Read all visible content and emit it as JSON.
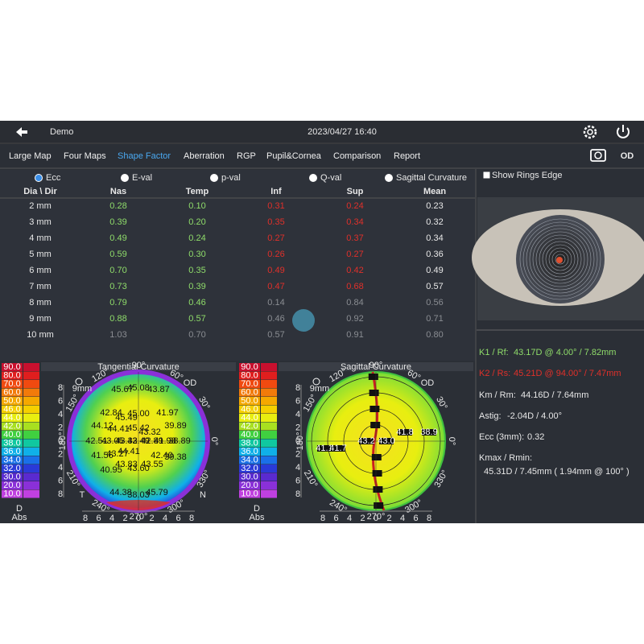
{
  "header": {
    "title": "Demo",
    "datetime": "2023/04/27 16:40"
  },
  "nav": {
    "tabs": [
      "Large Map",
      "Four Maps",
      "Shape Factor",
      "Aberration",
      "RGP",
      "Pupil&Cornea",
      "Comparison",
      "Report"
    ],
    "active": 2,
    "eye": "OD"
  },
  "shape_factor": {
    "options": [
      "Ecc",
      "E-val",
      "p-val",
      "Q-val",
      "Sagittal Curvature"
    ],
    "selected": 0,
    "table": {
      "header": [
        "Dia \\ Dir",
        "Nas",
        "Temp",
        "Inf",
        "Sup",
        "Mean"
      ],
      "rows": [
        {
          "cells": [
            "2 mm",
            "0.28",
            "0.10",
            "0.31",
            "0.24",
            "0.23"
          ],
          "colors": [
            "#e8e8e8",
            "#8fdc6a",
            "#8fdc6a",
            "#e0302a",
            "#e0302a",
            "#e8e8e8"
          ]
        },
        {
          "cells": [
            "3 mm",
            "0.39",
            "0.20",
            "0.35",
            "0.34",
            "0.32"
          ],
          "colors": [
            "#e8e8e8",
            "#8fdc6a",
            "#8fdc6a",
            "#e0302a",
            "#e0302a",
            "#e8e8e8"
          ]
        },
        {
          "cells": [
            "4 mm",
            "0.49",
            "0.24",
            "0.27",
            "0.37",
            "0.34"
          ],
          "colors": [
            "#e8e8e8",
            "#8fdc6a",
            "#8fdc6a",
            "#e0302a",
            "#e0302a",
            "#e8e8e8"
          ]
        },
        {
          "cells": [
            "5 mm",
            "0.59",
            "0.30",
            "0.26",
            "0.27",
            "0.36"
          ],
          "colors": [
            "#e8e8e8",
            "#8fdc6a",
            "#8fdc6a",
            "#e0302a",
            "#e0302a",
            "#e8e8e8"
          ]
        },
        {
          "cells": [
            "6 mm",
            "0.70",
            "0.35",
            "0.49",
            "0.42",
            "0.49"
          ],
          "colors": [
            "#e8e8e8",
            "#8fdc6a",
            "#8fdc6a",
            "#e0302a",
            "#e0302a",
            "#e8e8e8"
          ]
        },
        {
          "cells": [
            "7 mm",
            "0.73",
            "0.39",
            "0.47",
            "0.68",
            "0.57"
          ],
          "colors": [
            "#e8e8e8",
            "#8fdc6a",
            "#8fdc6a",
            "#e0302a",
            "#e0302a",
            "#e8e8e8"
          ]
        },
        {
          "cells": [
            "8 mm",
            "0.79",
            "0.46",
            "0.14",
            "0.84",
            "0.56"
          ],
          "colors": [
            "#e8e8e8",
            "#8fdc6a",
            "#8fdc6a",
            "#8a8d92",
            "#8a8d92",
            "#8a8d92"
          ]
        },
        {
          "cells": [
            "9 mm",
            "0.88",
            "0.57",
            "0.46",
            "0.92",
            "0.71"
          ],
          "colors": [
            "#e8e8e8",
            "#8fdc6a",
            "#8fdc6a",
            "#8a8d92",
            "#8a8d92",
            "#8a8d92"
          ]
        },
        {
          "cells": [
            "10 mm",
            "1.03",
            "0.70",
            "0.57",
            "0.91",
            "0.80"
          ],
          "colors": [
            "#e8e8e8",
            "#8a8d92",
            "#8a8d92",
            "#8a8d92",
            "#8a8d92",
            "#8a8d92"
          ]
        }
      ]
    }
  },
  "eye_image": {
    "checkbox": "Show Rings Edge",
    "checked": true
  },
  "keratometry": [
    {
      "label": "K1 / Rf:",
      "value": "43.17D @ 4.00° / 7.82mm",
      "color": "#8fdc6a"
    },
    {
      "label": "K2 / Rs:",
      "value": "45.21D @ 94.00° / 7.47mm",
      "color": "#e0302a"
    },
    {
      "label": "Km / Rm:",
      "value": "44.16D / 7.64mm",
      "color": "#e8e8e8"
    },
    {
      "label": "Astig:",
      "value": "-2.04D / 4.00°",
      "color": "#e8e8e8"
    },
    {
      "label": "Ecc (3mm):",
      "value": "0.32",
      "color": "#e8e8e8"
    },
    {
      "label": "Kmax / Rmin:",
      "value": "45.31D / 7.45mm ( 1.94mm @ 100° )",
      "color": "#e8e8e8"
    }
  ],
  "scale": {
    "labels": [
      "90.0",
      "80.0",
      "70.0",
      "60.0",
      "50.0",
      "46.0",
      "44.0",
      "42.0",
      "40.0",
      "38.0",
      "36.0",
      "34.0",
      "32.0",
      "30.0",
      "20.0",
      "10.0"
    ],
    "colors": [
      "#c8102e",
      "#e01e1e",
      "#f04a10",
      "#f27a0a",
      "#f5a800",
      "#f5d000",
      "#e8ee10",
      "#a8e020",
      "#40d040",
      "#10c8a0",
      "#10b0e8",
      "#1a70e8",
      "#2a3ad8",
      "#5a2ad0",
      "#8a30d8",
      "#c040e0"
    ],
    "unit": "D",
    "mode": "Abs"
  },
  "maps": [
    {
      "title": "Tangential Curvature",
      "eye": "OD",
      "zoom": "9mm",
      "temporal": "T",
      "nasal": "N",
      "angles": [
        "90°",
        "60°",
        "30°",
        "0°",
        "330°",
        "300°",
        "270°",
        "240°",
        "210°",
        "180°",
        "150°",
        "120°"
      ],
      "axis_ticks": [
        "8",
        "6",
        "4",
        "2",
        "0",
        "2",
        "4",
        "6",
        "8"
      ],
      "values": [
        "45.67",
        "45.08",
        "43.87",
        "42.84",
        "45.49",
        "45.00",
        "41.97",
        "44.12",
        "44.41",
        "45.42",
        "43.32",
        "39.89",
        "42.51",
        "43.05",
        "43.32",
        "43.49",
        "42.89",
        "41.98",
        "38.89",
        "41.56",
        "43.27",
        "44.41",
        "42.40",
        "39.38",
        "43.83",
        "43.60",
        "43.55",
        "40.95",
        "44.38",
        "38.03",
        "45.79"
      ]
    },
    {
      "title": "Sagittal Curvature",
      "eye": "OD",
      "zoom": "9mm",
      "angles": [
        "90°",
        "60°",
        "30°",
        "0°",
        "330°",
        "300°",
        "270°",
        "240°",
        "210°",
        "180°",
        "150°",
        "120°"
      ],
      "axis_ticks": [
        "8",
        "6",
        "4",
        "2",
        "0",
        "2",
        "4",
        "6",
        "8"
      ],
      "values": [
        "41.1",
        "41.7",
        "43.2",
        "43.0",
        "41.8",
        "38.9"
      ]
    }
  ]
}
